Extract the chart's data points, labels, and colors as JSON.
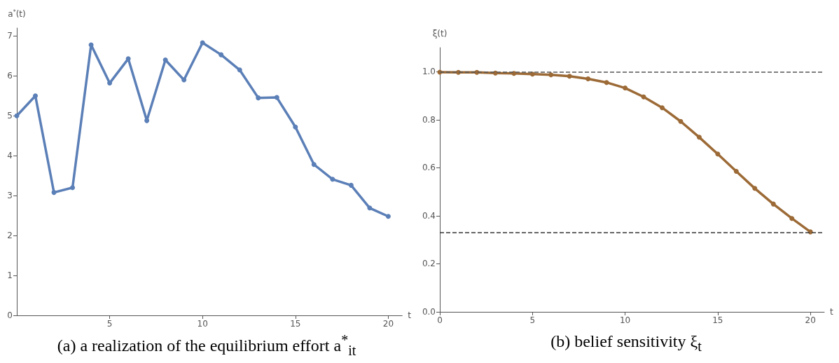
{
  "chart_data": [
    {
      "type": "line",
      "title": "(a) a realization of the equilibrium effort a$^{*}$$_{it}$",
      "xlabel": "t",
      "ylabel": "a$^{*}$(t)",
      "x": [
        0,
        1,
        2,
        3,
        4,
        5,
        6,
        7,
        8,
        9,
        10,
        11,
        12,
        13,
        14,
        15,
        16,
        17,
        18,
        19,
        20
      ],
      "series": [
        {
          "color": "#5b7fb7",
          "values": [
            5.0,
            5.5,
            3.08,
            3.2,
            6.78,
            5.82,
            6.43,
            4.88,
            6.4,
            5.9,
            6.83,
            6.53,
            6.15,
            5.45,
            5.46,
            4.72,
            3.78,
            3.41,
            3.26,
            2.69,
            2.48
          ]
        }
      ],
      "xlim": [
        0,
        20.75
      ],
      "xticks": [
        5,
        10,
        15,
        20
      ],
      "ylim": [
        0,
        7.2
      ],
      "yticks": [
        0,
        1,
        2,
        3,
        4,
        5,
        6,
        7
      ],
      "marker": "circle",
      "line_style": "solid",
      "grid": false
    },
    {
      "type": "line",
      "title": "(b) belief sensitivity ξ$_{t}$",
      "xlabel": "t",
      "ylabel": "ξ(t)",
      "x": [
        0,
        1,
        2,
        3,
        4,
        5,
        6,
        7,
        8,
        9,
        10,
        11,
        12,
        13,
        14,
        15,
        16,
        17,
        18,
        19,
        20
      ],
      "series": [
        {
          "color": "#9c6a36",
          "values": [
            0.998,
            0.997,
            0.997,
            0.994,
            0.993,
            0.99,
            0.987,
            0.981,
            0.97,
            0.955,
            0.932,
            0.895,
            0.85,
            0.793,
            0.727,
            0.657,
            0.585,
            0.514,
            0.449,
            0.389,
            0.333
          ]
        }
      ],
      "xlim": [
        0,
        20.75
      ],
      "xticks": [
        0,
        5,
        10,
        15,
        20
      ],
      "ylim": [
        0,
        1.1
      ],
      "yticks": [
        {
          "value": 0,
          "label": "0.0"
        },
        0.2,
        0.4,
        0.6,
        0.8,
        {
          "value": 1,
          "label": "1.0"
        }
      ],
      "ref_lines": [
        {
          "axis": "y",
          "value": 1,
          "color": "#555555",
          "line_style": "dashed"
        },
        {
          "axis": "y",
          "value": 0.333,
          "color": "#333333",
          "line_style": "dashed"
        }
      ],
      "marker": "circle",
      "line_style": "solid",
      "grid": false
    }
  ]
}
